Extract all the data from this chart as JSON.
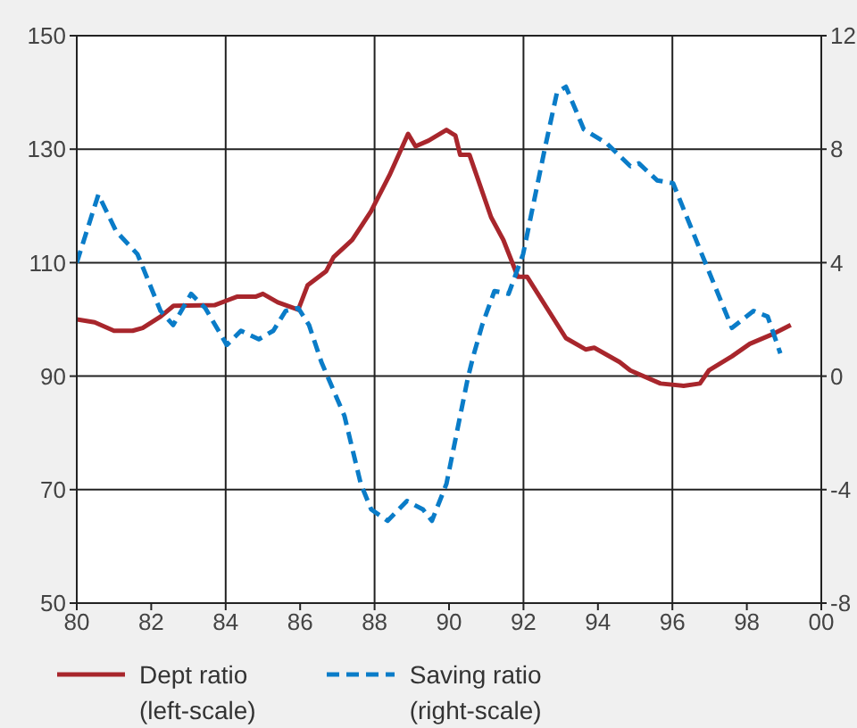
{
  "chart_data": {
    "type": "line",
    "xlim": [
      1980,
      2000
    ],
    "xticks": [
      {
        "value": 1980,
        "label": "80"
      },
      {
        "value": 1982,
        "label": "82"
      },
      {
        "value": 1984,
        "label": "84"
      },
      {
        "value": 1986,
        "label": "86"
      },
      {
        "value": 1988,
        "label": "88"
      },
      {
        "value": 1990,
        "label": "90"
      },
      {
        "value": 1992,
        "label": "92"
      },
      {
        "value": 1994,
        "label": "94"
      },
      {
        "value": 1996,
        "label": "96"
      },
      {
        "value": 1998,
        "label": "98"
      },
      {
        "value": 2000,
        "label": "00"
      }
    ],
    "ylim": [
      50,
      150
    ],
    "yticks": [
      50,
      70,
      90,
      110,
      130,
      150
    ],
    "y2lim": [
      -8,
      12
    ],
    "y2ticks": [
      -8,
      -4,
      0,
      4,
      8,
      12
    ],
    "grid": true,
    "legend": "bottom",
    "marker": "none",
    "series": [
      {
        "name": "Dept ratio\n(left-scale)",
        "color": "#a8262c",
        "line_style": "solid",
        "x": [
          1980,
          1980.48,
          1981,
          1981.5,
          1981.77,
          1982.25,
          1982.6,
          1983.7,
          1984.3,
          1984.8,
          1985,
          1985.4,
          1985.95,
          1986.2,
          1986.7,
          1986.9,
          1987.4,
          1987.9,
          1988.4,
          1988.9,
          1989.1,
          1989.45,
          1989.93,
          1990.17,
          1990.3,
          1990.55,
          1991.13,
          1991.46,
          1991.85,
          1992.1,
          1993.14,
          1993.67,
          1993.9,
          1994.58,
          1994.87,
          1995.68,
          1996.3,
          1996.74,
          1996.98,
          1997.6,
          1998.08,
          1998.66,
          1999.18
        ],
        "values": [
          100,
          99.5,
          98,
          98,
          98.5,
          100.5,
          102.4,
          102.5,
          104,
          104,
          104.5,
          103,
          101.7,
          106,
          108.5,
          111,
          114,
          119,
          125.4,
          132.7,
          130.5,
          131.5,
          133.4,
          132.4,
          129,
          129,
          118,
          114,
          107.5,
          107.5,
          96.7,
          94.7,
          95,
          92.5,
          91,
          88.7,
          88.3,
          88.7,
          91,
          93.5,
          95.7,
          97.3,
          99
        ]
      },
      {
        "name": "Saving ratio\n(right-scale)",
        "color": "#0a7cc8",
        "line_style": "dashed",
        "axis": "y2",
        "x": [
          1980,
          1980.58,
          1981.06,
          1981.63,
          1982.25,
          1982.59,
          1983.07,
          1983.45,
          1984.03,
          1984.41,
          1984.89,
          1985.28,
          1985.61,
          1985.95,
          1986.24,
          1986.57,
          1987.19,
          1987.63,
          1987.91,
          1988.35,
          1988.87,
          1989.3,
          1989.54,
          1989.93,
          1990.5,
          1990.65,
          1990.89,
          1991.22,
          1991.6,
          1991.99,
          1992.57,
          1992.9,
          1993.14,
          1993.62,
          1994.24,
          1994.87,
          1995.1,
          1995.59,
          1996.02,
          1996.79,
          1997.6,
          1998.18,
          1998.56,
          1998.9
        ],
        "values": [
          4,
          6.4,
          5.1,
          4.3,
          2.3,
          1.8,
          2.9,
          2.4,
          1.1,
          1.6,
          1.3,
          1.6,
          2.3,
          2.4,
          1.8,
          0.5,
          -1.4,
          -3.8,
          -4.7,
          -5.1,
          -4.4,
          -4.7,
          -5.1,
          -3.8,
          -0.1,
          0.7,
          1.8,
          3,
          2.9,
          4.3,
          8,
          10,
          10.2,
          8.7,
          8.2,
          7.4,
          7.5,
          6.9,
          6.8,
          4.3,
          1.7,
          2.3,
          2.1,
          0.8
        ]
      }
    ]
  }
}
